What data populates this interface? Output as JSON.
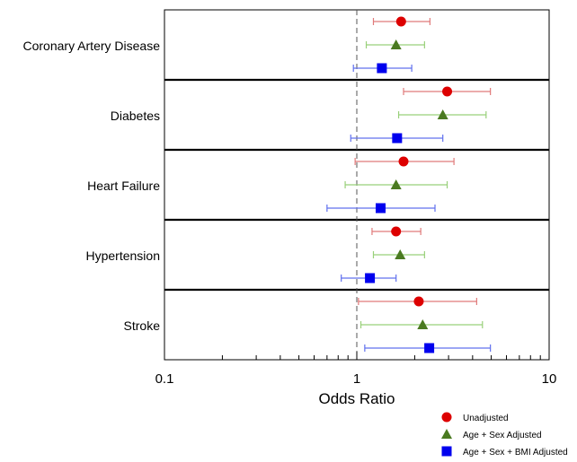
{
  "chart_data": {
    "type": "scatter",
    "subtype": "forest-plot",
    "xlabel": "Odds Ratio",
    "x_scale": "log",
    "xlim": [
      0.1,
      10
    ],
    "x_major_ticks": [
      0.1,
      1,
      10
    ],
    "x_tick_labels": [
      "0.1",
      "1",
      "10"
    ],
    "reference_line": 1,
    "grid": false,
    "legend_position": "bottom-right",
    "categories": [
      "Coronary Artery Disease",
      "Diabetes",
      "Heart Failure",
      "Hypertension",
      "Stroke"
    ],
    "series": [
      {
        "name": "Unadjusted",
        "marker": "circle",
        "color": "#dd0000",
        "ci_color": "#e07a7a",
        "estimates": [
          1.7,
          2.95,
          1.75,
          1.6,
          2.1
        ],
        "lower": [
          1.22,
          1.75,
          0.98,
          1.2,
          1.02
        ],
        "upper": [
          2.4,
          4.95,
          3.2,
          2.15,
          4.2
        ]
      },
      {
        "name": "Age + Sex Adjusted",
        "marker": "triangle",
        "color": "#4a7a20",
        "ci_color": "#99d07a",
        "estimates": [
          1.6,
          2.8,
          1.6,
          1.68,
          2.2
        ],
        "lower": [
          1.12,
          1.65,
          0.87,
          1.22,
          1.05
        ],
        "upper": [
          2.25,
          4.7,
          2.95,
          2.25,
          4.5
        ]
      },
      {
        "name": "Age + Sex + BMI Adjusted",
        "marker": "square",
        "color": "#0000ee",
        "ci_color": "#6070ee",
        "estimates": [
          1.35,
          1.62,
          1.33,
          1.17,
          2.38
        ],
        "lower": [
          0.96,
          0.93,
          0.7,
          0.83,
          1.1
        ],
        "upper": [
          1.93,
          2.8,
          2.55,
          1.6,
          4.95
        ]
      }
    ]
  }
}
